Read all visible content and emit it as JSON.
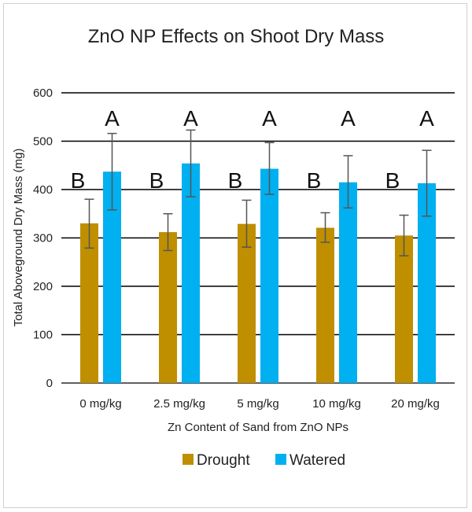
{
  "chart_data": {
    "type": "bar",
    "title": "ZnO NP Effects on Shoot Dry Mass",
    "xlabel": "Zn Content of Sand from ZnO NPs",
    "ylabel": "Total Aboveground Dry Mass (mg)",
    "ylim": [
      0,
      600
    ],
    "yticks": [
      0,
      100,
      200,
      300,
      400,
      500,
      600
    ],
    "categories": [
      "0 mg/kg",
      "2.5 mg/kg",
      "5 mg/kg",
      "10 mg/kg",
      "20 mg/kg"
    ],
    "series": [
      {
        "name": "Drought",
        "color": "#BF8F00",
        "values": [
          330,
          312,
          329,
          321,
          305
        ],
        "error_low": [
          279,
          274,
          281,
          291,
          263
        ],
        "error_high": [
          380,
          350,
          378,
          352,
          347
        ],
        "labels": [
          "B",
          "B",
          "B",
          "B",
          "B"
        ]
      },
      {
        "name": "Watered",
        "color": "#00B0F0",
        "values": [
          437,
          454,
          443,
          415,
          413
        ],
        "error_low": [
          358,
          385,
          390,
          362,
          345
        ],
        "error_high": [
          516,
          523,
          497,
          470,
          481
        ],
        "labels": [
          "A",
          "A",
          "A",
          "A",
          "A"
        ]
      }
    ],
    "grid": true,
    "legend": "bottom"
  }
}
